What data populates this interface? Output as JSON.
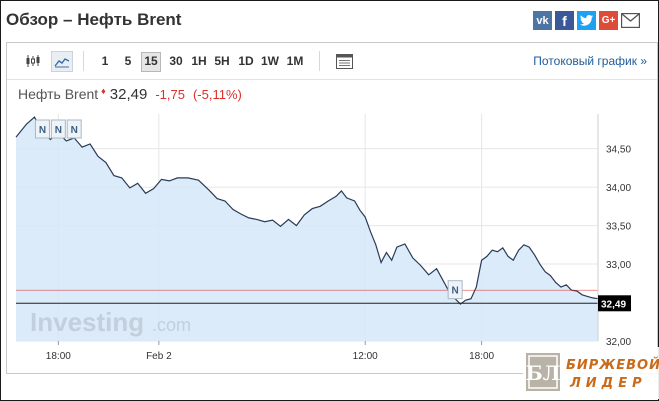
{
  "page": {
    "title": "Обзор – Нефть Brent"
  },
  "social": [
    {
      "name": "vk-icon",
      "glyph": "vk",
      "color": "#4c75a3"
    },
    {
      "name": "facebook-icon",
      "glyph": "f",
      "color": "#3b5998"
    },
    {
      "name": "twitter-icon",
      "glyph": "t",
      "color": "#1da1f2"
    },
    {
      "name": "google-plus-icon",
      "glyph": "G+",
      "color": "#dd4b39"
    },
    {
      "name": "mail-icon",
      "glyph": "mail",
      "color": "#555555"
    }
  ],
  "toolbar": {
    "chart_type_icons": [
      "candlestick-icon",
      "area-chart-icon"
    ],
    "timeframes": [
      "1",
      "5",
      "15",
      "30",
      "1H",
      "5H",
      "1D",
      "1W",
      "1M"
    ],
    "active_timeframe": "15",
    "settings_icon": "chart-settings-icon",
    "stream_link": "Потоковый график »"
  },
  "quote": {
    "name": "Нефть Brent",
    "arrow": "♦",
    "price": "32,49",
    "change": "-1,75",
    "change_pct": "(-5,11%)"
  },
  "chart_data": {
    "type": "area",
    "instrument": "Нефть Brent",
    "x_tick_labels": [
      "18:00",
      "Feb 2",
      "12:00",
      "18:00"
    ],
    "y_tick_labels": [
      "34,50",
      "34,00",
      "33,50",
      "33,00",
      "32,50",
      "32,00"
    ],
    "ylim": [
      32.0,
      34.95
    ],
    "grid": true,
    "current_price": 32.49,
    "current_price_label": "32,49",
    "reference_line": 32.66,
    "news_markers": [
      {
        "label": "N",
        "x": 0.05
      },
      {
        "label": "N",
        "x": 0.08
      },
      {
        "label": "N",
        "x": 0.11
      },
      {
        "label": "N",
        "x": 1.37
      }
    ],
    "x_range": [
      0,
      1.9
    ],
    "x_ticks_at": [
      0.08,
      0.27,
      0.66,
      0.88
    ],
    "values": [
      [
        0.0,
        34.65
      ],
      [
        0.02,
        34.82
      ],
      [
        0.035,
        34.91
      ],
      [
        0.05,
        34.72
      ],
      [
        0.065,
        34.62
      ],
      [
        0.08,
        34.7
      ],
      [
        0.095,
        34.6
      ],
      [
        0.11,
        34.64
      ],
      [
        0.125,
        34.52
      ],
      [
        0.14,
        34.56
      ],
      [
        0.155,
        34.4
      ],
      [
        0.17,
        34.32
      ],
      [
        0.185,
        34.15
      ],
      [
        0.2,
        34.12
      ],
      [
        0.215,
        33.99
      ],
      [
        0.23,
        34.05
      ],
      [
        0.245,
        33.92
      ],
      [
        0.26,
        33.98
      ],
      [
        0.275,
        34.1
      ],
      [
        0.29,
        34.08
      ],
      [
        0.305,
        34.12
      ],
      [
        0.325,
        34.12
      ],
      [
        0.345,
        34.09
      ],
      [
        0.365,
        33.96
      ],
      [
        0.38,
        33.85
      ],
      [
        0.395,
        33.82
      ],
      [
        0.41,
        33.71
      ],
      [
        0.425,
        33.65
      ],
      [
        0.44,
        33.6
      ],
      [
        0.455,
        33.58
      ],
      [
        0.47,
        33.55
      ],
      [
        0.485,
        33.57
      ],
      [
        0.5,
        33.49
      ],
      [
        0.515,
        33.58
      ],
      [
        0.53,
        33.5
      ],
      [
        0.545,
        33.64
      ],
      [
        0.56,
        33.72
      ],
      [
        0.575,
        33.75
      ],
      [
        0.59,
        33.82
      ],
      [
        0.605,
        33.88
      ],
      [
        0.615,
        33.95
      ],
      [
        0.625,
        33.86
      ],
      [
        0.64,
        33.82
      ],
      [
        0.65,
        33.7
      ],
      [
        0.66,
        33.61
      ],
      [
        0.67,
        33.42
      ],
      [
        0.68,
        33.25
      ],
      [
        0.69,
        33.02
      ],
      [
        0.7,
        33.15
      ],
      [
        0.71,
        33.05
      ],
      [
        0.72,
        33.22
      ],
      [
        0.735,
        33.26
      ],
      [
        0.75,
        33.08
      ],
      [
        0.765,
        32.98
      ],
      [
        0.78,
        32.86
      ],
      [
        0.795,
        32.94
      ],
      [
        0.81,
        32.75
      ],
      [
        0.82,
        32.62
      ],
      [
        0.83,
        32.55
      ],
      [
        0.84,
        32.48
      ],
      [
        0.85,
        32.53
      ],
      [
        0.86,
        32.55
      ],
      [
        0.87,
        32.7
      ],
      [
        0.88,
        33.05
      ],
      [
        0.89,
        33.1
      ],
      [
        0.9,
        33.18
      ],
      [
        0.91,
        33.16
      ],
      [
        0.92,
        33.21
      ],
      [
        0.93,
        33.1
      ],
      [
        0.94,
        33.05
      ],
      [
        0.95,
        33.18
      ],
      [
        0.96,
        33.25
      ],
      [
        0.97,
        33.22
      ],
      [
        0.98,
        33.12
      ],
      [
        0.99,
        33.0
      ],
      [
        1.0,
        32.9
      ],
      [
        1.01,
        32.85
      ],
      [
        1.02,
        32.76
      ],
      [
        1.03,
        32.7
      ],
      [
        1.04,
        32.73
      ],
      [
        1.05,
        32.66
      ],
      [
        1.06,
        32.65
      ],
      [
        1.07,
        32.6
      ],
      [
        1.08,
        32.58
      ],
      [
        1.09,
        32.56
      ],
      [
        1.1,
        32.55
      ]
    ]
  },
  "watermarks": {
    "investing": "Investing",
    "investing_suffix": ".com",
    "logo_mark": "БЛ",
    "logo_line1": "БИРЖЕВОЙ",
    "logo_line2": "ЛИДЕР"
  },
  "colors": {
    "area_fill": "#d6e8f8",
    "line": "#2a3b55",
    "grid": "#e6e6e6",
    "negative": "#d9302c",
    "reference_line": "#d9302c",
    "price_tag_bg": "#000000",
    "link": "#1f5c99",
    "logo_text": "#c86b1a"
  }
}
